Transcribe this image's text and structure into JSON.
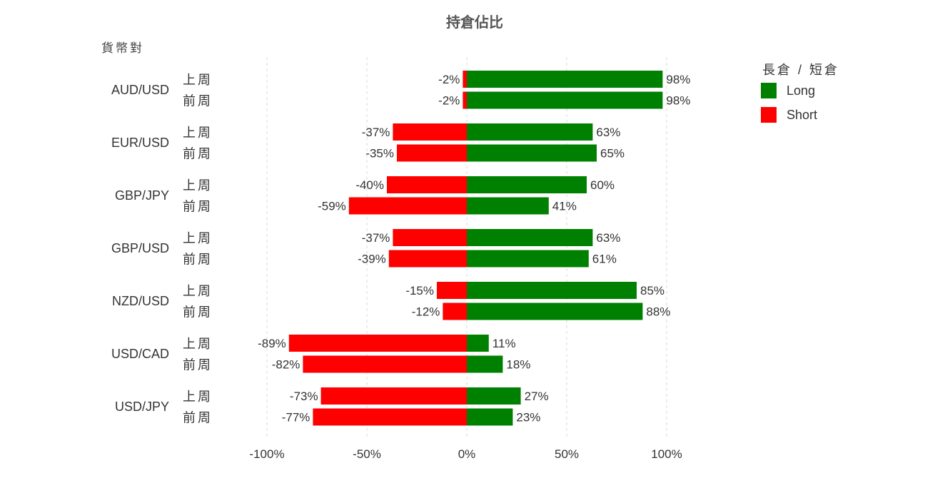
{
  "chart_data": {
    "type": "bar",
    "orientation": "horizontal",
    "stacking": "diverging",
    "title": "持倉佔比",
    "ylabel": "貨幣對",
    "xlim": [
      -100,
      100
    ],
    "x_ticks": [
      -100,
      -50,
      0,
      50,
      100
    ],
    "x_tick_labels": [
      "-100%",
      "-50%",
      "0%",
      "50%",
      "100%"
    ],
    "grid": "vertical dashed",
    "legend": {
      "title": "長倉 / 短倉",
      "placement": "top-right",
      "entries": [
        {
          "name": "Long",
          "color": "#008000"
        },
        {
          "name": "Short",
          "color": "#ff0000"
        }
      ]
    },
    "groups": [
      {
        "pair": "AUD/USD",
        "rows": [
          {
            "period": "上周",
            "long": 98,
            "short": -2,
            "long_label": "98%",
            "short_label": "-2%"
          },
          {
            "period": "前周",
            "long": 98,
            "short": -2,
            "long_label": "98%",
            "short_label": "-2%"
          }
        ]
      },
      {
        "pair": "EUR/USD",
        "rows": [
          {
            "period": "上周",
            "long": 63,
            "short": -37,
            "long_label": "63%",
            "short_label": "-37%"
          },
          {
            "period": "前周",
            "long": 65,
            "short": -35,
            "long_label": "65%",
            "short_label": "-35%"
          }
        ]
      },
      {
        "pair": "GBP/JPY",
        "rows": [
          {
            "period": "上周",
            "long": 60,
            "short": -40,
            "long_label": "60%",
            "short_label": "-40%"
          },
          {
            "period": "前周",
            "long": 41,
            "short": -59,
            "long_label": "41%",
            "short_label": "-59%"
          }
        ]
      },
      {
        "pair": "GBP/USD",
        "rows": [
          {
            "period": "上周",
            "long": 63,
            "short": -37,
            "long_label": "63%",
            "short_label": "-37%"
          },
          {
            "period": "前周",
            "long": 61,
            "short": -39,
            "long_label": "61%",
            "short_label": "-39%"
          }
        ]
      },
      {
        "pair": "NZD/USD",
        "rows": [
          {
            "period": "上周",
            "long": 85,
            "short": -15,
            "long_label": "85%",
            "short_label": "-15%"
          },
          {
            "period": "前周",
            "long": 88,
            "short": -12,
            "long_label": "88%",
            "short_label": "-12%"
          }
        ]
      },
      {
        "pair": "USD/CAD",
        "rows": [
          {
            "period": "上周",
            "long": 11,
            "short": -89,
            "long_label": "11%",
            "short_label": "-89%"
          },
          {
            "period": "前周",
            "long": 18,
            "short": -82,
            "long_label": "18%",
            "short_label": "-82%"
          }
        ]
      },
      {
        "pair": "USD/JPY",
        "rows": [
          {
            "period": "上周",
            "long": 27,
            "short": -73,
            "long_label": "27%",
            "short_label": "-73%"
          },
          {
            "period": "前周",
            "long": 23,
            "short": -77,
            "long_label": "23%",
            "short_label": "-77%"
          }
        ]
      }
    ]
  }
}
